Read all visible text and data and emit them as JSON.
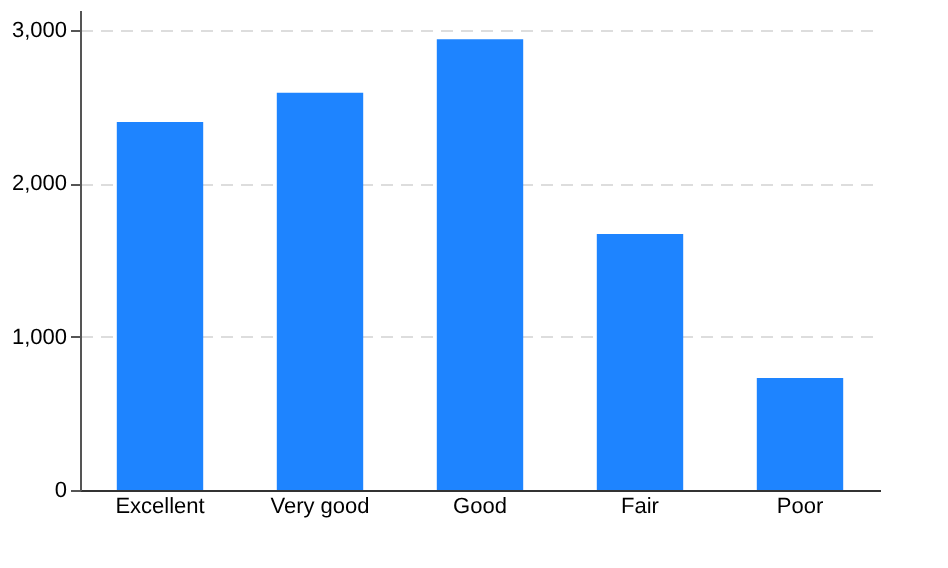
{
  "chart_data": {
    "type": "bar",
    "categories": [
      "Excellent",
      "Very good",
      "Good",
      "Fair",
      "Poor"
    ],
    "values": [
      2400,
      2590,
      2940,
      1670,
      730
    ],
    "color": "#1e84ff",
    "ylim": [
      0,
      3130
    ],
    "yticks": [
      0,
      {
        "value": 1000,
        "label": "1,000"
      },
      {
        "value": 2000,
        "label": "2,000"
      },
      {
        "value": 3000,
        "label": "3,000"
      }
    ],
    "grid": "y"
  }
}
